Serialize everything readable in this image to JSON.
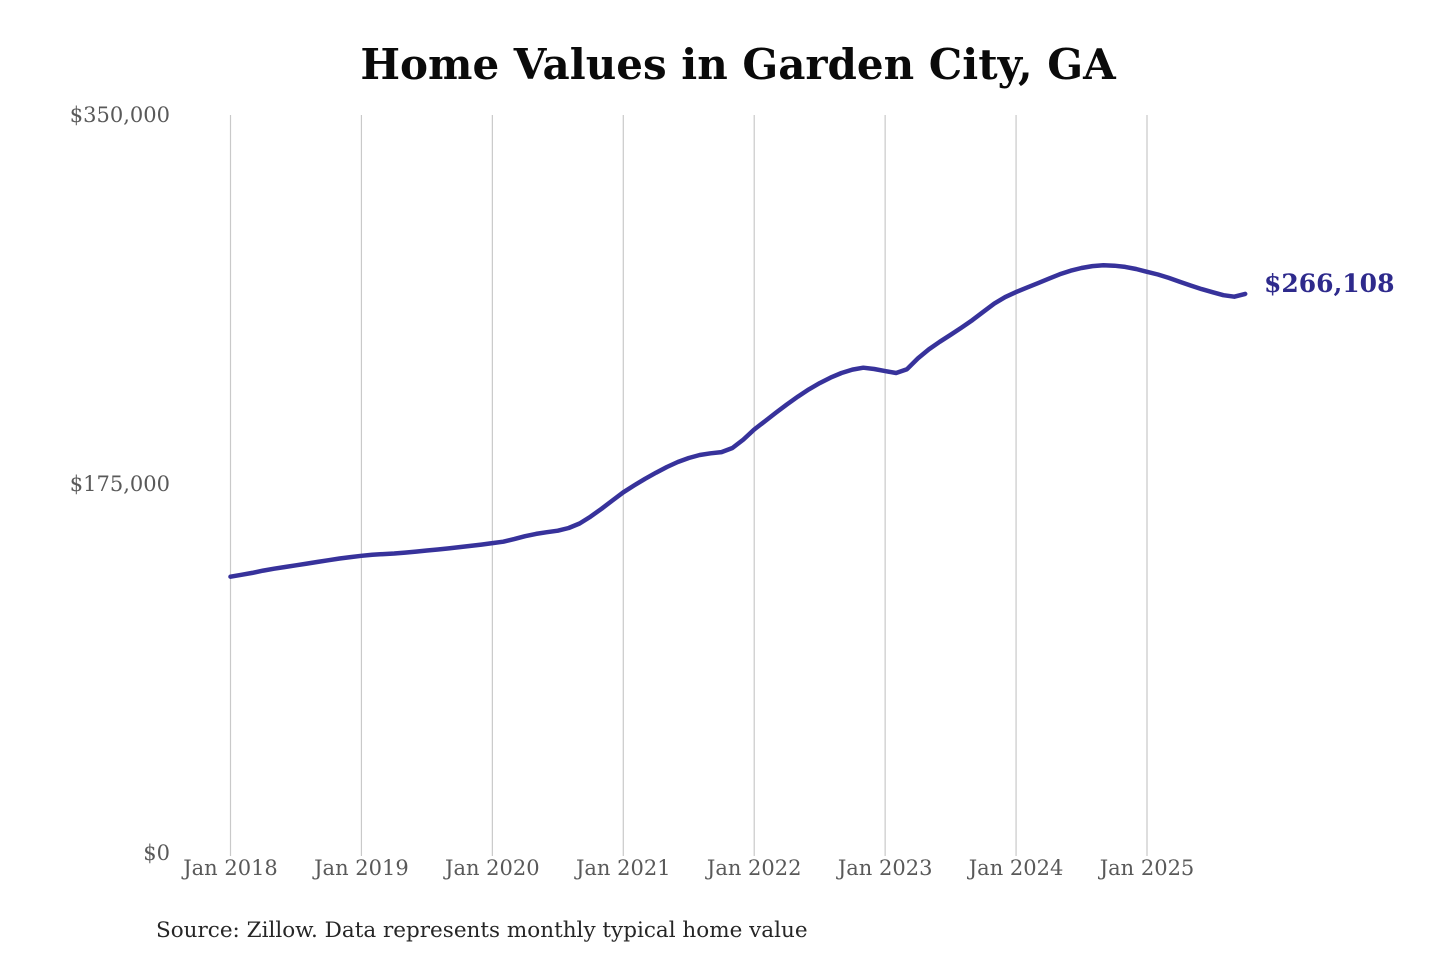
{
  "title": "Home Values in Garden City, GA",
  "source": "Source: Zillow. Data represents monthly typical home value",
  "colors": {
    "background": "#ffffff",
    "line": "#37329b",
    "grid": "#c9c9c9",
    "axis_text": "#595959",
    "title_text": "#0a0a0a",
    "end_label_text": "#2e2a8c",
    "source_text": "#262626"
  },
  "chart_data": {
    "type": "line",
    "title": "Home Values in Garden City, GA",
    "xlabel": "",
    "ylabel": "",
    "ylim": [
      0,
      350000
    ],
    "y_ticks": [
      0,
      175000,
      350000
    ],
    "y_tick_labels": [
      "$0",
      "$175,000",
      "$350,000"
    ],
    "x_tick_labels": [
      "Jan 2018",
      "Jan 2019",
      "Jan 2020",
      "Jan 2021",
      "Jan 2022",
      "Jan 2023",
      "Jan 2024",
      "Jan 2025"
    ],
    "grid": "vertical-only",
    "legend": "none",
    "final_value": 266108,
    "final_value_label": "$266,108",
    "series": [
      {
        "name": "Monthly typical home value",
        "x": [
          "2018-01",
          "2018-02",
          "2018-03",
          "2018-04",
          "2018-05",
          "2018-06",
          "2018-07",
          "2018-08",
          "2018-09",
          "2018-10",
          "2018-11",
          "2018-12",
          "2019-01",
          "2019-02",
          "2019-03",
          "2019-04",
          "2019-05",
          "2019-06",
          "2019-07",
          "2019-08",
          "2019-09",
          "2019-10",
          "2019-11",
          "2019-12",
          "2020-01",
          "2020-02",
          "2020-03",
          "2020-04",
          "2020-05",
          "2020-06",
          "2020-07",
          "2020-08",
          "2020-09",
          "2020-10",
          "2020-11",
          "2020-12",
          "2021-01",
          "2021-02",
          "2021-03",
          "2021-04",
          "2021-05",
          "2021-06",
          "2021-07",
          "2021-08",
          "2021-09",
          "2021-10",
          "2021-11",
          "2021-12",
          "2022-01",
          "2022-02",
          "2022-03",
          "2022-04",
          "2022-05",
          "2022-06",
          "2022-07",
          "2022-08",
          "2022-09",
          "2022-10",
          "2022-11",
          "2022-12",
          "2023-01",
          "2023-02",
          "2023-03",
          "2023-04",
          "2023-05",
          "2023-06",
          "2023-07",
          "2023-08",
          "2023-09",
          "2023-10",
          "2023-11",
          "2023-12",
          "2024-01",
          "2024-02",
          "2024-03",
          "2024-04",
          "2024-05",
          "2024-06",
          "2024-07",
          "2024-08",
          "2024-09",
          "2024-10",
          "2024-11",
          "2024-12",
          "2025-01",
          "2025-02",
          "2025-03",
          "2025-04",
          "2025-05",
          "2025-06",
          "2025-07",
          "2025-08",
          "2025-09",
          "2025-10"
        ],
        "values": [
          132000,
          132900,
          133800,
          134900,
          135800,
          136600,
          137400,
          138200,
          139000,
          139800,
          140600,
          141300,
          141900,
          142400,
          142700,
          143000,
          143400,
          143900,
          144400,
          144900,
          145400,
          146000,
          146600,
          147200,
          147900,
          148600,
          149800,
          151200,
          152300,
          153100,
          153800,
          155100,
          157200,
          160500,
          164200,
          168100,
          172000,
          175300,
          178400,
          181300,
          184000,
          186400,
          188300,
          189700,
          190500,
          191100,
          193000,
          197000,
          201800,
          205800,
          209800,
          213700,
          217400,
          220800,
          223800,
          226400,
          228600,
          230200,
          231100,
          230500,
          229500,
          228600,
          230400,
          235500,
          239800,
          243400,
          246700,
          250100,
          253700,
          257600,
          261500,
          264600,
          267000,
          269100,
          271200,
          273300,
          275400,
          277100,
          278400,
          279300,
          279700,
          279500,
          278900,
          277900,
          276600,
          275300,
          273700,
          271900,
          270100,
          268400,
          266900,
          265500,
          264800,
          266108
        ]
      }
    ]
  }
}
